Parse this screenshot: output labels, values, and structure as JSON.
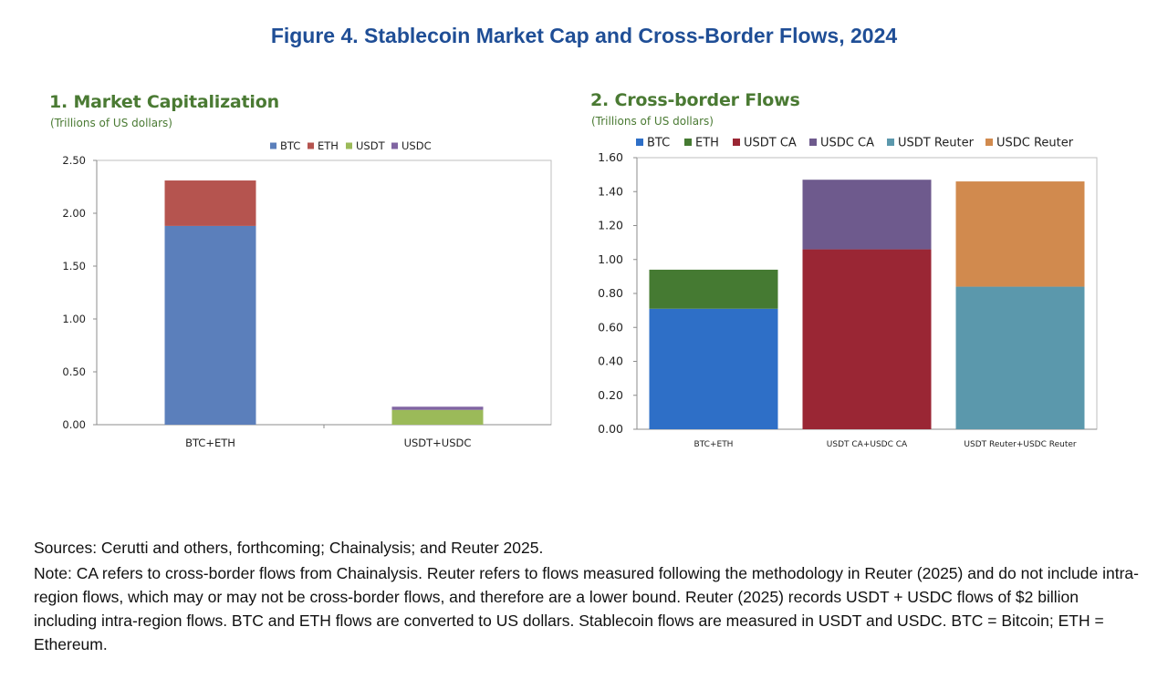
{
  "figure_title": "Figure 4. Stablecoin Market Cap and Cross-Border Flows, 2024",
  "sources": "Sources: Cerutti and others, forthcoming; Chainalysis; and Reuter 2025.",
  "note": "Note: CA refers to cross-border flows from Chainalysis. Reuter refers to flows measured following the methodology in Reuter (2025) and do not include intra-region flows, which may or may not be cross-border flows, and therefore are a lower bound. Reuter (2025) records USDT + USDC flows of $2 billion including intra-region flows. BTC and ETH flows are converted to US dollars. Stablecoin flows are measured in USDT and USDC. BTC = Bitcoin; ETH = Ethereum.",
  "chart_data": [
    {
      "type": "bar",
      "stacked": true,
      "title": "1. Market Capitalization",
      "subtitle": "(Trillions of US dollars)",
      "categories": [
        "BTC+ETH",
        "USDT+USDC"
      ],
      "series": [
        {
          "name": "BTC",
          "color": "#5b7fbb",
          "values": [
            1.88,
            0
          ]
        },
        {
          "name": "ETH",
          "color": "#b5544f",
          "values": [
            0.43,
            0
          ]
        },
        {
          "name": "USDT",
          "color": "#9bba59",
          "values": [
            0,
            0.14
          ]
        },
        {
          "name": "USDC",
          "color": "#8064a2",
          "values": [
            0,
            0.03
          ]
        }
      ],
      "ylim": [
        0,
        2.5
      ],
      "yticks": [
        "0.00",
        "0.50",
        "1.00",
        "1.50",
        "2.00",
        "2.50"
      ],
      "grid": false,
      "legend": "top"
    },
    {
      "type": "bar",
      "stacked": true,
      "title": "2. Cross-border Flows",
      "subtitle": "(Trillions of US dollars)",
      "categories": [
        "BTC+ETH",
        "USDT CA+USDC CA",
        "USDT Reuter+USDC Reuter"
      ],
      "series": [
        {
          "name": "BTC",
          "color": "#2e6fc7",
          "values": [
            0.71,
            0,
            0
          ]
        },
        {
          "name": "ETH",
          "color": "#457a32",
          "values": [
            0.23,
            0,
            0
          ]
        },
        {
          "name": "USDT CA",
          "color": "#9a2634",
          "values": [
            0,
            1.06,
            0
          ]
        },
        {
          "name": "USDC CA",
          "color": "#6e5a8d",
          "values": [
            0,
            0.41,
            0
          ]
        },
        {
          "name": "USDT Reuter",
          "color": "#5b98ac",
          "values": [
            0,
            0,
            0.84
          ]
        },
        {
          "name": "USDC Reuter",
          "color": "#d18a4e",
          "values": [
            0,
            0,
            0.62
          ]
        }
      ],
      "ylim": [
        0,
        1.6
      ],
      "yticks": [
        "0.00",
        "0.20",
        "0.40",
        "0.60",
        "0.80",
        "1.00",
        "1.20",
        "1.40",
        "1.60"
      ],
      "grid": false,
      "legend": "top"
    }
  ]
}
